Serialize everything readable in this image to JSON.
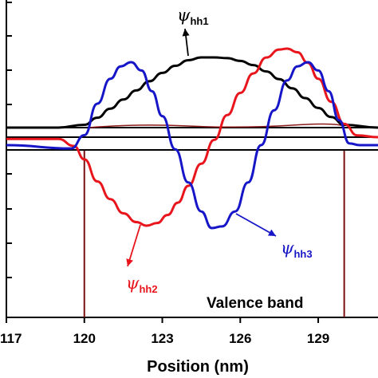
{
  "chart_data": {
    "type": "line",
    "xlabel": "Position (nm)",
    "ylabel": "",
    "xlim": [
      117,
      131.3
    ],
    "x_ticks": [
      "117",
      "120",
      "123",
      "126",
      "129"
    ],
    "annotation_text": "Valence band",
    "series": [
      {
        "name": "ψhh1",
        "color": "#000000",
        "x": [
          117,
          119,
          120,
          120.5,
          121,
          121.5,
          122,
          122.5,
          123,
          123.5,
          124,
          124.5,
          125,
          125.5,
          126,
          126.5,
          127,
          127.5,
          128,
          128.5,
          129,
          129.5,
          130,
          131.3
        ],
        "y": [
          0.0,
          0.0,
          0.04,
          0.14,
          0.27,
          0.4,
          0.53,
          0.66,
          0.78,
          0.88,
          0.96,
          1.0,
          1.0,
          0.99,
          0.95,
          0.89,
          0.8,
          0.69,
          0.56,
          0.42,
          0.28,
          0.15,
          0.04,
          0.0
        ]
      },
      {
        "name": "ψhh2",
        "color": "#e8161c",
        "x": [
          117,
          119,
          119.6,
          120,
          120.5,
          121,
          121.5,
          122,
          122.4,
          122.8,
          123.2,
          123.6,
          124,
          124.5,
          125,
          125.5,
          126,
          126.5,
          127,
          127.5,
          127.8,
          128.2,
          128.6,
          129,
          129.5,
          130,
          130.5,
          131.3
        ],
        "y": [
          -0.02,
          -0.02,
          -0.1,
          -0.25,
          -0.5,
          -0.7,
          -0.86,
          -0.96,
          -1.0,
          -0.97,
          -0.88,
          -0.74,
          -0.55,
          -0.3,
          -0.03,
          0.25,
          0.5,
          0.72,
          0.9,
          0.99,
          1.0,
          0.96,
          0.84,
          0.66,
          0.4,
          0.15,
          0.02,
          0.0
        ]
      },
      {
        "name": "ψhh3",
        "color": "#1616c8",
        "x": [
          117,
          119.5,
          120,
          120.5,
          121,
          121.4,
          121.8,
          122.2,
          122.6,
          123,
          123.5,
          124,
          124.5,
          124.9,
          125.3,
          125.8,
          126.3,
          126.8,
          127.3,
          127.8,
          128.2,
          128.6,
          129,
          129.4,
          129.8,
          130.2,
          130.6,
          131.3
        ],
        "y": [
          0.0,
          -0.04,
          0.12,
          0.5,
          0.8,
          0.95,
          1.0,
          0.9,
          0.65,
          0.35,
          -0.05,
          -0.45,
          -0.8,
          -1.0,
          -0.98,
          -0.8,
          -0.45,
          0.0,
          0.42,
          0.78,
          0.95,
          1.0,
          0.9,
          0.65,
          0.3,
          0.02,
          0.0,
          0.0
        ]
      }
    ],
    "annotations": [
      {
        "label": "ψ",
        "sub": "hh1",
        "color": "#000000"
      },
      {
        "label": "ψ",
        "sub": "hh2",
        "color": "#e8161c"
      },
      {
        "label": "ψ",
        "sub": "hh3",
        "color": "#1616c8"
      }
    ]
  }
}
